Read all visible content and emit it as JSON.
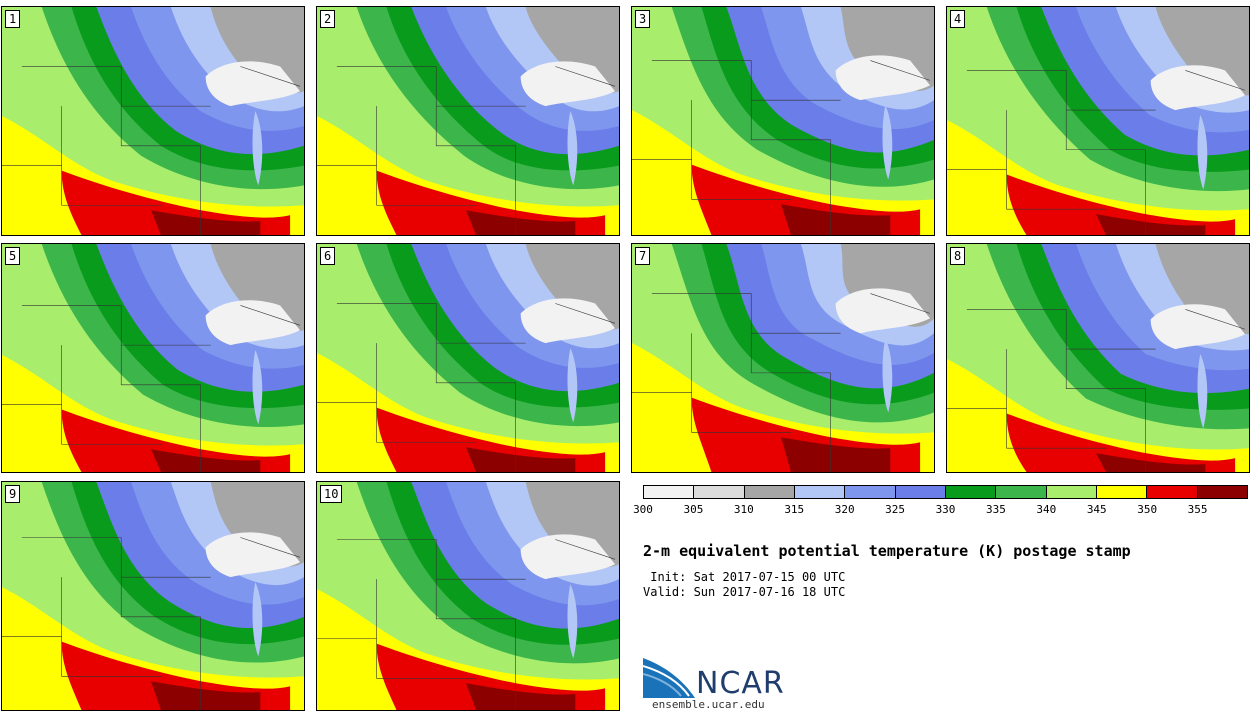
{
  "panels": [
    {
      "label": "1"
    },
    {
      "label": "2"
    },
    {
      "label": "3"
    },
    {
      "label": "4"
    },
    {
      "label": "5"
    },
    {
      "label": "6"
    },
    {
      "label": "7"
    },
    {
      "label": "8"
    },
    {
      "label": "9"
    },
    {
      "label": "10"
    }
  ],
  "colorbar": {
    "colors": [
      "#f2f2f2",
      "#dcdcdc",
      "#a6a6a6",
      "#b3c7f7",
      "#7e96ee",
      "#6b7de8",
      "#099b1c",
      "#3cb54b",
      "#a8ee6c",
      "#ffff00",
      "#e80000",
      "#8c0000"
    ],
    "ticks": [
      "300",
      "305",
      "310",
      "315",
      "320",
      "325",
      "330",
      "335",
      "340",
      "345",
      "350",
      "355"
    ]
  },
  "title": "2-m equivalent potential temperature (K) postage stamp",
  "init": " Init: Sat 2017-07-15 00 UTC",
  "valid": "Valid: Sun 2017-07-16 18 UTC",
  "logo": {
    "text": "NCAR",
    "icon": "ncar-swoosh-icon"
  },
  "website": "ensemble.ucar.edu"
}
